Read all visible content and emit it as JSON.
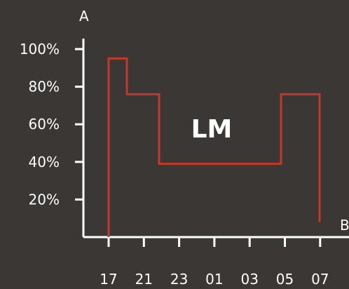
{
  "chart_data": {
    "type": "line",
    "title": "",
    "xlabel": "B",
    "ylabel": "A",
    "x_ticks": [
      "17",
      "21",
      "23",
      "01",
      "03",
      "05",
      "07"
    ],
    "y_ticks": [
      20,
      40,
      60,
      80,
      100
    ],
    "y_tick_labels": [
      "20%",
      "40%",
      "60%",
      "80%",
      "100%"
    ],
    "ylim": [
      0,
      100
    ],
    "annotation": "LM",
    "grid": false,
    "colors": {
      "series": "#c0392b",
      "axis": "#ffffff",
      "background": "#3a3735"
    },
    "series": [
      {
        "step_points": [
          {
            "x": "17",
            "y": 0
          },
          {
            "x": "17",
            "y": 95
          },
          {
            "x": "17-21",
            "y": 95
          },
          {
            "x": "17-21",
            "y": 76
          },
          {
            "x": "21-23",
            "y": 76
          },
          {
            "x": "21-23",
            "y": 39
          },
          {
            "x": "03-05",
            "y": 39
          },
          {
            "x": "03-05",
            "y": 76
          },
          {
            "x": "07",
            "y": 76
          },
          {
            "x": "07",
            "y": 8
          }
        ]
      }
    ]
  }
}
